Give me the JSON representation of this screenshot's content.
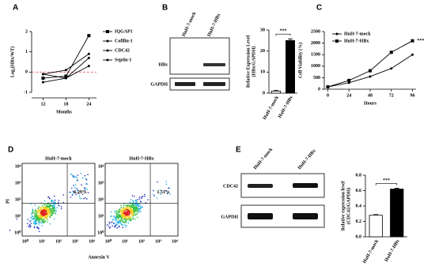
{
  "panel_labels": [
    "A",
    "B",
    "C",
    "D",
    "E"
  ],
  "chart_data": [
    {
      "type": "line",
      "ylabel": "Log₂(HBx/WT)",
      "xlabel": "Months",
      "x": [
        12,
        18,
        24
      ],
      "xlim": [
        9,
        26
      ],
      "xticks": [
        12,
        18,
        24
      ],
      "ylim": [
        -1,
        2
      ],
      "yticks": [
        -1,
        0,
        1,
        2
      ],
      "hline": 0,
      "hline_color": "#e06060",
      "legend": "right",
      "series": [
        {
          "name": "IQGAP1",
          "color": "#000000",
          "marker": "square",
          "values": [
            -0.3,
            -0.2,
            1.8
          ]
        },
        {
          "name": "Cofilin-1",
          "color": "#000000",
          "marker": "circle",
          "values": [
            -0.1,
            0.1,
            0.9
          ]
        },
        {
          "name": "CDC42",
          "color": "#000000",
          "marker": "circle",
          "values": [
            -0.1,
            -0.3,
            0.7
          ]
        },
        {
          "name": "Septin-1",
          "color": "#000000",
          "marker": "circle",
          "values": [
            -0.5,
            -0.3,
            0.3
          ]
        }
      ]
    },
    {
      "type": "bar",
      "ylabel": [
        "Relative Expression Level",
        "(HBx/GAPDH)"
      ],
      "categories": [
        "HuH-7-mock",
        "HuH-7-HBx"
      ],
      "values": [
        1,
        25
      ],
      "errors": [
        0.3,
        0.8
      ],
      "colors": [
        "#ffffff",
        "#000000"
      ],
      "ylim": [
        0,
        30
      ],
      "yticks": [
        0,
        10,
        20,
        30
      ],
      "annotation": "***"
    },
    {
      "type": "line",
      "ylabel": "Cell Viability (%)",
      "xlabel": "Hours",
      "x": [
        0,
        24,
        48,
        72,
        96
      ],
      "xlim": [
        -4,
        100
      ],
      "xticks": [
        0,
        24,
        48,
        72,
        96
      ],
      "ylim": [
        0,
        2500
      ],
      "yticks": [
        0,
        500,
        1000,
        1500,
        2000,
        2500
      ],
      "legend": "upper left",
      "annotation": "***",
      "series": [
        {
          "name": "HuH-7-mock",
          "color": "#000000",
          "marker": "circle",
          "values": [
            100,
            280,
            550,
            900,
            1500
          ]
        },
        {
          "name": "HuH-7-HBx",
          "color": "#000000",
          "marker": "square",
          "values": [
            100,
            380,
            800,
            1600,
            2100
          ]
        }
      ]
    },
    {
      "type": "bar",
      "ylabel": [
        "Relative expression level",
        "(CDC42/GAPDH)"
      ],
      "categories": [
        "HuH-7-mock",
        "HuH-7-HBx"
      ],
      "values": [
        0.28,
        0.62
      ],
      "errors": [
        0.01,
        0.01
      ],
      "colors": [
        "#ffffff",
        "#000000"
      ],
      "ylim": [
        0,
        0.8
      ],
      "yticks": [
        {
          "value": 0,
          "label": "0.0"
        },
        0.2,
        0.4,
        0.6,
        0.8
      ],
      "annotation": "***"
    }
  ],
  "blots": [
    {
      "lanes": [
        "HuH-7-mock",
        "HuH-7-HBx"
      ],
      "bands": [
        "HBx",
        "GAPDH"
      ]
    },
    {
      "lanes": [
        "HuH-7-mock",
        "HuH-7-HBx"
      ],
      "bands": [
        "CDC42",
        "GAPDH"
      ]
    }
  ],
  "flow": {
    "samples": [
      {
        "title": "HuH-7-mock",
        "quadrant": "6.29%"
      },
      {
        "title": "HuH-7-HBx",
        "quadrant": "1.51%"
      }
    ],
    "ylabel": "PI",
    "xlabel": "Annexin V",
    "ticks": [
      "10⁰",
      "10¹",
      "10²",
      "10³",
      "10⁴"
    ]
  }
}
